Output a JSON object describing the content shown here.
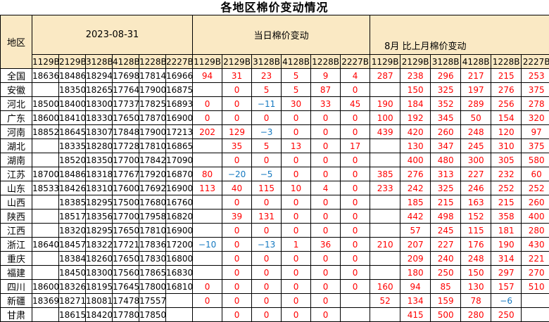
{
  "title": "各地区棉价变动情况",
  "colors": {
    "header_bg": "#fae9c4",
    "positive_change": "#ff0000",
    "negative_change": "#1579c0",
    "border": "#000000",
    "price_text": "#000000"
  },
  "chart_data": {
    "type": "table",
    "title": "各地区棉价变动情况",
    "region_header": "地区",
    "groups": [
      {
        "label": "2023-08-31",
        "sub": [
          "1129B",
          "2129B",
          "3128B",
          "4128B",
          "1228B",
          "2227B"
        ]
      },
      {
        "label": "当日棉价变动",
        "sub": [
          "1129B",
          "2129B",
          "3128B",
          "4128B",
          "1228B",
          "2227B"
        ]
      },
      {
        "label": "8月 比上月棉价变动",
        "sub": [
          "1129B",
          "2129B",
          "3128B",
          "4128B",
          "1228B",
          "2227B"
        ]
      }
    ],
    "rows": [
      {
        "region": "全国",
        "prices": [
          18636,
          18486,
          18294,
          17698,
          17814,
          16966
        ],
        "daily": [
          94,
          31,
          23,
          5,
          9,
          4
        ],
        "monthly": [
          287,
          238,
          296,
          217,
          215,
          253
        ]
      },
      {
        "region": "安徽",
        "prices": [
          null,
          18350,
          18265,
          17764,
          17900,
          16875
        ],
        "daily": [
          null,
          0,
          5,
          5,
          87,
          0
        ],
        "monthly": [
          null,
          150,
          325,
          197,
          276,
          375
        ]
      },
      {
        "region": "河北",
        "prices": [
          18500,
          18400,
          18300,
          17737,
          17825,
          16893
        ],
        "daily": [
          0,
          0,
          -11,
          30,
          33,
          45
        ],
        "monthly": [
          190,
          184,
          352,
          289,
          256,
          278
        ]
      },
      {
        "region": "广东",
        "prices": [
          18600,
          18410,
          18330,
          17650,
          17870,
          16900
        ],
        "daily": [
          0,
          0,
          0,
          0,
          0,
          0
        ],
        "monthly": [
          100,
          192,
          345,
          50,
          154,
          320
        ]
      },
      {
        "region": "河南",
        "prices": [
          18852,
          18645,
          18307,
          17848,
          17900,
          17213
        ],
        "daily": [
          202,
          129,
          -3,
          0,
          0,
          0
        ],
        "monthly": [
          439,
          420,
          260,
          248,
          120,
          97
        ]
      },
      {
        "region": "湖北",
        "prices": [
          null,
          18335,
          18280,
          17728,
          17810,
          16865
        ],
        "daily": [
          null,
          35,
          5,
          13,
          0,
          17
        ],
        "monthly": [
          null,
          130,
          347,
          245,
          310,
          375
        ]
      },
      {
        "region": "湖南",
        "prices": [
          null,
          18520,
          18350,
          17700,
          17842,
          17090
        ],
        "daily": [
          null,
          0,
          0,
          0,
          0,
          0
        ],
        "monthly": [
          null,
          400,
          480,
          300,
          305,
          580
        ]
      },
      {
        "region": "江苏",
        "prices": [
          18700,
          18486,
          18318,
          17767,
          17920,
          16870
        ],
        "daily": [
          80,
          -20,
          -5,
          0,
          0,
          0
        ],
        "monthly": [
          385,
          276,
          313,
          227,
          232,
          60
        ]
      },
      {
        "region": "山东",
        "prices": [
          18533,
          18426,
          18310,
          17600,
          17692,
          16900
        ],
        "daily": [
          113,
          40,
          115,
          10,
          4,
          0
        ],
        "monthly": [
          233,
          242,
          325,
          246,
          252,
          252
        ]
      },
      {
        "region": "山西",
        "prices": [
          null,
          18385,
          18295,
          17500,
          17680,
          16760
        ],
        "daily": [
          null,
          0,
          0,
          0,
          0,
          0
        ],
        "monthly": [
          null,
          185,
          215,
          163,
          215,
          260
        ]
      },
      {
        "region": "陕西",
        "prices": [
          null,
          18517,
          18356,
          17700,
          17958,
          16820
        ],
        "daily": [
          null,
          39,
          131,
          0,
          0,
          0
        ],
        "monthly": [
          null,
          442,
          498,
          152,
          358,
          400
        ]
      },
      {
        "region": "江西",
        "prices": [
          null,
          18320,
          18295,
          17650,
          17810,
          16900
        ],
        "daily": [
          null,
          0,
          0,
          0,
          0,
          0
        ],
        "monthly": [
          null,
          57,
          245,
          115,
          181,
          280
        ]
      },
      {
        "region": "浙江",
        "prices": [
          18640,
          18457,
          18322,
          17721,
          17836,
          17200
        ],
        "daily": [
          -10,
          0,
          -13,
          1,
          36,
          0
        ],
        "monthly": [
          210,
          207,
          227,
          176,
          190,
          430
        ]
      },
      {
        "region": "重庆",
        "prices": [
          null,
          18384,
          18260,
          17650,
          17830,
          16800
        ],
        "daily": [
          null,
          0,
          0,
          0,
          0,
          0
        ],
        "monthly": [
          null,
          209,
          240,
          248,
          314,
          221
        ]
      },
      {
        "region": "福建",
        "prices": [
          null,
          18450,
          18300,
          17560,
          17865,
          16830
        ],
        "daily": [
          null,
          0,
          0,
          0,
          0,
          0
        ],
        "monthly": [
          null,
          180,
          250,
          150,
          297,
          270
        ]
      },
      {
        "region": "四川",
        "prices": [
          18600,
          18326,
          18195,
          17645,
          17800,
          16810
        ],
        "daily": [
          0,
          0,
          0,
          0,
          0,
          0
        ],
        "monthly": [
          160,
          94,
          85,
          130,
          157,
          510
        ]
      },
      {
        "region": "新疆",
        "prices": [
          18369,
          18271,
          18081,
          17478,
          17557,
          null
        ],
        "daily": [
          0,
          0,
          0,
          0,
          0,
          null
        ],
        "monthly": [
          52,
          134,
          159,
          78,
          -6,
          null
        ]
      },
      {
        "region": "甘肃",
        "prices": [
          null,
          18615,
          18420,
          17780,
          17850,
          null
        ],
        "daily": [
          null,
          0,
          0,
          0,
          0,
          null
        ],
        "monthly": [
          null,
          415,
          500,
          280,
          250,
          null
        ]
      }
    ]
  }
}
